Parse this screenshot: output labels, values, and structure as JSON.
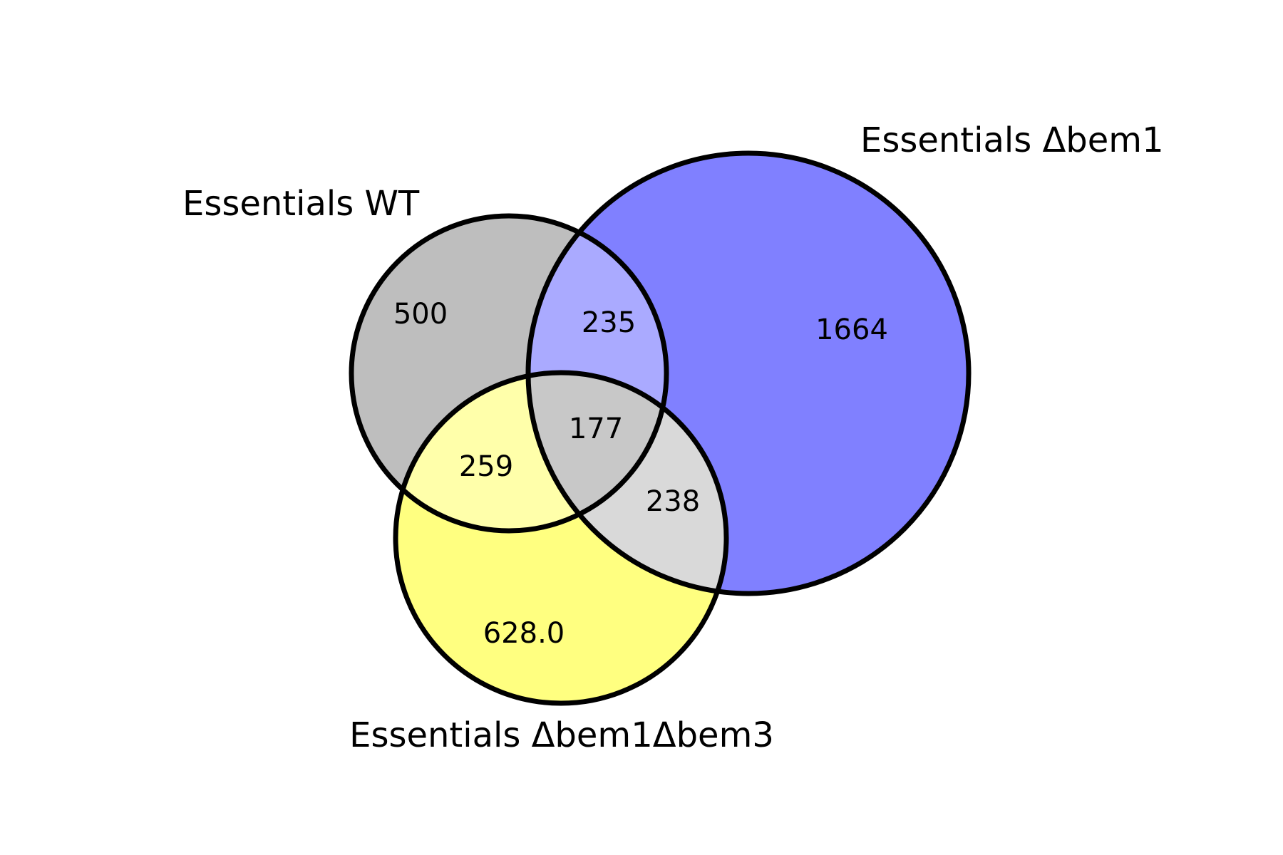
{
  "diagram": {
    "type": "venn3",
    "sets": [
      {
        "id": "wt",
        "label": "Essentials WT",
        "color": "#bebebe"
      },
      {
        "id": "bem1",
        "label": "Essentials Δbem1",
        "color": "#8080ff"
      },
      {
        "id": "bem13",
        "label": "Essentials Δbem1Δbem3",
        "color": "#ffff80"
      }
    ],
    "regions": {
      "wt_only": {
        "value": "500",
        "color": "#bebebe"
      },
      "bem1_only": {
        "value": "1664",
        "color": "#8080ff"
      },
      "bem13_only": {
        "value": "628.0",
        "color": "#ffff80"
      },
      "wt_bem1": {
        "value": "235",
        "color": "#aaaaff"
      },
      "wt_bem13": {
        "value": "259",
        "color": "#ffffaa"
      },
      "bem1_bem13": {
        "value": "238",
        "color": "#d9d9d9"
      },
      "all_three": {
        "value": "177",
        "color": "#c8c8c8"
      }
    },
    "outline_color": "#000000"
  }
}
